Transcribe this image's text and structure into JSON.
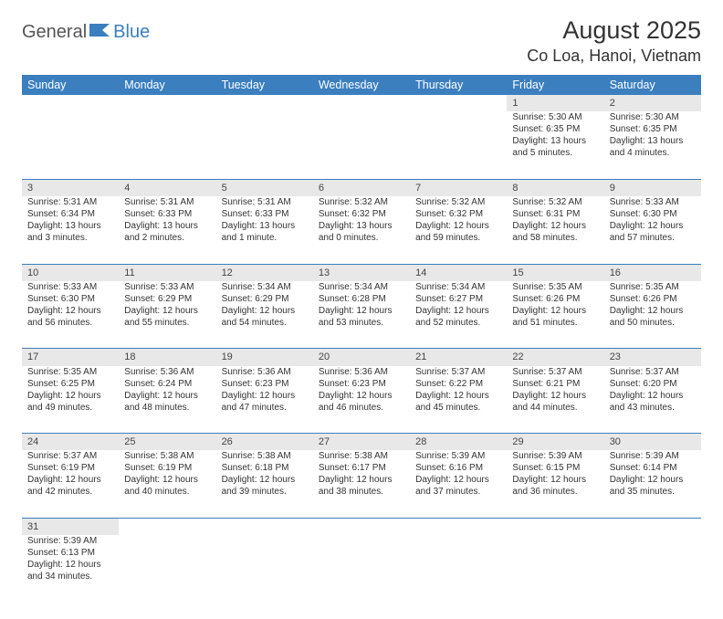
{
  "logo": {
    "general": "General",
    "blue": "Blue"
  },
  "header": {
    "title": "August 2025",
    "location": "Co Loa, Hanoi, Vietnam"
  },
  "colors": {
    "accent": "#3b7fbf",
    "daynum_bg": "#e8e8e8",
    "text": "#333333"
  },
  "dayHeaders": [
    "Sunday",
    "Monday",
    "Tuesday",
    "Wednesday",
    "Thursday",
    "Friday",
    "Saturday"
  ],
  "weeks": [
    [
      null,
      null,
      null,
      null,
      null,
      {
        "n": "1",
        "sr": "Sunrise: 5:30 AM",
        "ss": "Sunset: 6:35 PM",
        "d1": "Daylight: 13 hours",
        "d2": "and 5 minutes."
      },
      {
        "n": "2",
        "sr": "Sunrise: 5:30 AM",
        "ss": "Sunset: 6:35 PM",
        "d1": "Daylight: 13 hours",
        "d2": "and 4 minutes."
      }
    ],
    [
      {
        "n": "3",
        "sr": "Sunrise: 5:31 AM",
        "ss": "Sunset: 6:34 PM",
        "d1": "Daylight: 13 hours",
        "d2": "and 3 minutes."
      },
      {
        "n": "4",
        "sr": "Sunrise: 5:31 AM",
        "ss": "Sunset: 6:33 PM",
        "d1": "Daylight: 13 hours",
        "d2": "and 2 minutes."
      },
      {
        "n": "5",
        "sr": "Sunrise: 5:31 AM",
        "ss": "Sunset: 6:33 PM",
        "d1": "Daylight: 13 hours",
        "d2": "and 1 minute."
      },
      {
        "n": "6",
        "sr": "Sunrise: 5:32 AM",
        "ss": "Sunset: 6:32 PM",
        "d1": "Daylight: 13 hours",
        "d2": "and 0 minutes."
      },
      {
        "n": "7",
        "sr": "Sunrise: 5:32 AM",
        "ss": "Sunset: 6:32 PM",
        "d1": "Daylight: 12 hours",
        "d2": "and 59 minutes."
      },
      {
        "n": "8",
        "sr": "Sunrise: 5:32 AM",
        "ss": "Sunset: 6:31 PM",
        "d1": "Daylight: 12 hours",
        "d2": "and 58 minutes."
      },
      {
        "n": "9",
        "sr": "Sunrise: 5:33 AM",
        "ss": "Sunset: 6:30 PM",
        "d1": "Daylight: 12 hours",
        "d2": "and 57 minutes."
      }
    ],
    [
      {
        "n": "10",
        "sr": "Sunrise: 5:33 AM",
        "ss": "Sunset: 6:30 PM",
        "d1": "Daylight: 12 hours",
        "d2": "and 56 minutes."
      },
      {
        "n": "11",
        "sr": "Sunrise: 5:33 AM",
        "ss": "Sunset: 6:29 PM",
        "d1": "Daylight: 12 hours",
        "d2": "and 55 minutes."
      },
      {
        "n": "12",
        "sr": "Sunrise: 5:34 AM",
        "ss": "Sunset: 6:29 PM",
        "d1": "Daylight: 12 hours",
        "d2": "and 54 minutes."
      },
      {
        "n": "13",
        "sr": "Sunrise: 5:34 AM",
        "ss": "Sunset: 6:28 PM",
        "d1": "Daylight: 12 hours",
        "d2": "and 53 minutes."
      },
      {
        "n": "14",
        "sr": "Sunrise: 5:34 AM",
        "ss": "Sunset: 6:27 PM",
        "d1": "Daylight: 12 hours",
        "d2": "and 52 minutes."
      },
      {
        "n": "15",
        "sr": "Sunrise: 5:35 AM",
        "ss": "Sunset: 6:26 PM",
        "d1": "Daylight: 12 hours",
        "d2": "and 51 minutes."
      },
      {
        "n": "16",
        "sr": "Sunrise: 5:35 AM",
        "ss": "Sunset: 6:26 PM",
        "d1": "Daylight: 12 hours",
        "d2": "and 50 minutes."
      }
    ],
    [
      {
        "n": "17",
        "sr": "Sunrise: 5:35 AM",
        "ss": "Sunset: 6:25 PM",
        "d1": "Daylight: 12 hours",
        "d2": "and 49 minutes."
      },
      {
        "n": "18",
        "sr": "Sunrise: 5:36 AM",
        "ss": "Sunset: 6:24 PM",
        "d1": "Daylight: 12 hours",
        "d2": "and 48 minutes."
      },
      {
        "n": "19",
        "sr": "Sunrise: 5:36 AM",
        "ss": "Sunset: 6:23 PM",
        "d1": "Daylight: 12 hours",
        "d2": "and 47 minutes."
      },
      {
        "n": "20",
        "sr": "Sunrise: 5:36 AM",
        "ss": "Sunset: 6:23 PM",
        "d1": "Daylight: 12 hours",
        "d2": "and 46 minutes."
      },
      {
        "n": "21",
        "sr": "Sunrise: 5:37 AM",
        "ss": "Sunset: 6:22 PM",
        "d1": "Daylight: 12 hours",
        "d2": "and 45 minutes."
      },
      {
        "n": "22",
        "sr": "Sunrise: 5:37 AM",
        "ss": "Sunset: 6:21 PM",
        "d1": "Daylight: 12 hours",
        "d2": "and 44 minutes."
      },
      {
        "n": "23",
        "sr": "Sunrise: 5:37 AM",
        "ss": "Sunset: 6:20 PM",
        "d1": "Daylight: 12 hours",
        "d2": "and 43 minutes."
      }
    ],
    [
      {
        "n": "24",
        "sr": "Sunrise: 5:37 AM",
        "ss": "Sunset: 6:19 PM",
        "d1": "Daylight: 12 hours",
        "d2": "and 42 minutes."
      },
      {
        "n": "25",
        "sr": "Sunrise: 5:38 AM",
        "ss": "Sunset: 6:19 PM",
        "d1": "Daylight: 12 hours",
        "d2": "and 40 minutes."
      },
      {
        "n": "26",
        "sr": "Sunrise: 5:38 AM",
        "ss": "Sunset: 6:18 PM",
        "d1": "Daylight: 12 hours",
        "d2": "and 39 minutes."
      },
      {
        "n": "27",
        "sr": "Sunrise: 5:38 AM",
        "ss": "Sunset: 6:17 PM",
        "d1": "Daylight: 12 hours",
        "d2": "and 38 minutes."
      },
      {
        "n": "28",
        "sr": "Sunrise: 5:39 AM",
        "ss": "Sunset: 6:16 PM",
        "d1": "Daylight: 12 hours",
        "d2": "and 37 minutes."
      },
      {
        "n": "29",
        "sr": "Sunrise: 5:39 AM",
        "ss": "Sunset: 6:15 PM",
        "d1": "Daylight: 12 hours",
        "d2": "and 36 minutes."
      },
      {
        "n": "30",
        "sr": "Sunrise: 5:39 AM",
        "ss": "Sunset: 6:14 PM",
        "d1": "Daylight: 12 hours",
        "d2": "and 35 minutes."
      }
    ],
    [
      {
        "n": "31",
        "sr": "Sunrise: 5:39 AM",
        "ss": "Sunset: 6:13 PM",
        "d1": "Daylight: 12 hours",
        "d2": "and 34 minutes."
      },
      null,
      null,
      null,
      null,
      null,
      null
    ]
  ]
}
